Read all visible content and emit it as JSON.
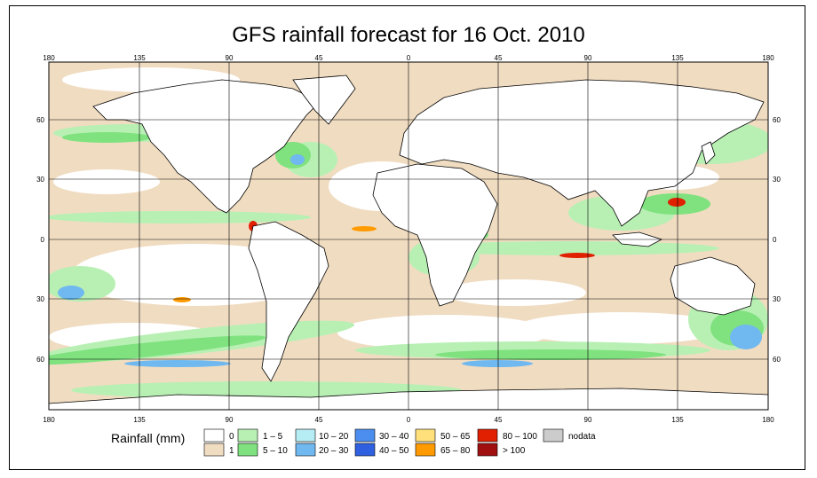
{
  "title": "GFS rainfall forecast for 16 Oct. 2010",
  "map": {
    "top_lon_labels": [
      "180",
      "135",
      "90",
      "45",
      "0",
      "45",
      "90",
      "135",
      "180"
    ],
    "bottom_lon_labels": [
      "180",
      "135",
      "90",
      "45",
      "0",
      "45",
      "90",
      "135",
      "180"
    ],
    "left_lat_labels": [
      "60",
      "30",
      "0",
      "30",
      "60"
    ],
    "right_lat_labels": [
      "60",
      "30",
      "0",
      "30",
      "60"
    ],
    "lon_range": [
      -180,
      180
    ],
    "lat_range": [
      -85,
      85
    ],
    "gridlines": true,
    "colors": {
      "ocean_base": "#f0dcc1",
      "land": "#ffffff",
      "zero": "#ffffff",
      "one": "#f0dcc1",
      "light_green": "#b8f0b4",
      "green": "#7fe27f",
      "light_blue": "#b6ecf4",
      "blue": "#6fb8f0",
      "dark_blue": "#2f74e0",
      "orange": "#ff9a00",
      "red": "#e02000"
    }
  },
  "legend": {
    "title": "Rainfall (mm)",
    "entries": [
      {
        "label": "0",
        "color": "#ffffff"
      },
      {
        "label": "1",
        "color": "#f0dcc1"
      },
      {
        "label": "1 – 5",
        "color": "#b8f0b4"
      },
      {
        "label": "5 – 10",
        "color": "#7fe27f"
      },
      {
        "label": "10 – 20",
        "color": "#b6ecf4"
      },
      {
        "label": "20 – 30",
        "color": "#6fb8f0"
      },
      {
        "label": "30 – 40",
        "color": "#4c8ef0"
      },
      {
        "label": "40 – 50",
        "color": "#2f60e0"
      },
      {
        "label": "50 – 65",
        "color": "#ffe07a"
      },
      {
        "label": "65 – 80",
        "color": "#ff9a00"
      },
      {
        "label": "80 – 100",
        "color": "#e02000"
      },
      {
        "label": "> 100",
        "color": "#a01010"
      },
      {
        "label": "nodata",
        "color": "#cccccc"
      }
    ]
  }
}
